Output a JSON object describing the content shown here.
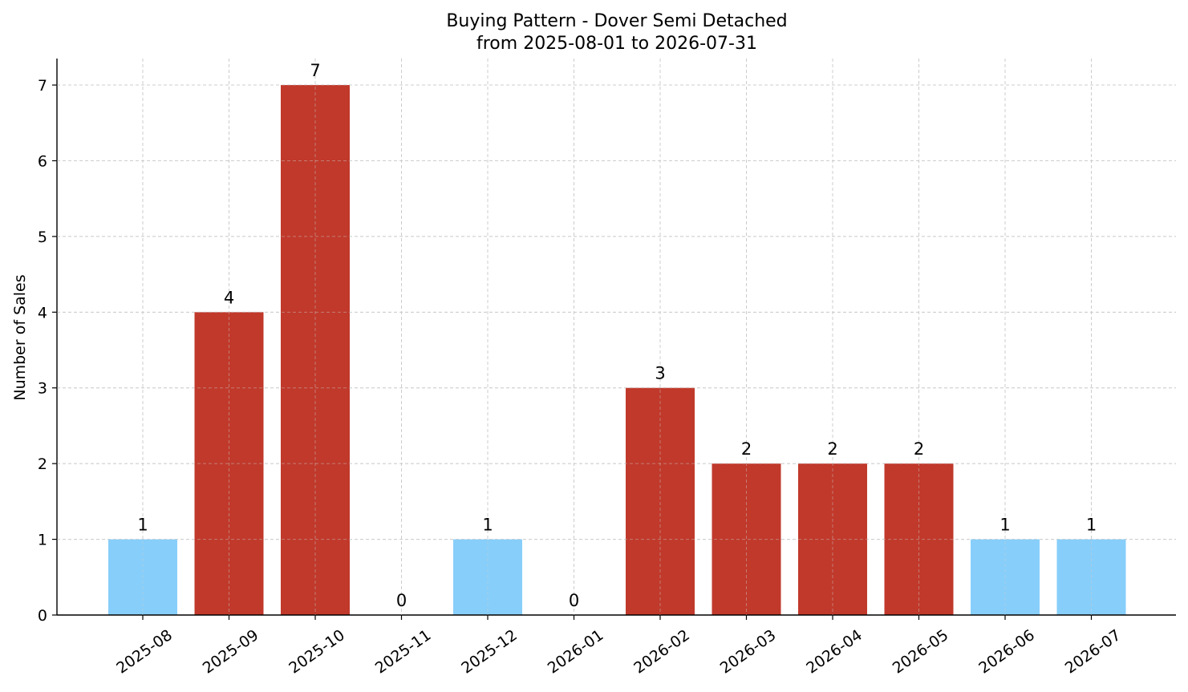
{
  "chart_data": {
    "type": "bar",
    "title": "Buying Pattern - Dover Semi Detached",
    "subtitle": "from 2025-08-01 to 2026-07-31",
    "xlabel": "",
    "ylabel": "Number of Sales",
    "categories": [
      "2025-08",
      "2025-09",
      "2025-10",
      "2025-11",
      "2025-12",
      "2026-01",
      "2026-02",
      "2026-03",
      "2026-04",
      "2026-05",
      "2026-06",
      "2026-07"
    ],
    "values": [
      1,
      4,
      7,
      0,
      1,
      0,
      3,
      2,
      2,
      2,
      1,
      1
    ],
    "bar_colors": [
      "#87CEFA",
      "#C0392B",
      "#C0392B",
      "#C0392B",
      "#87CEFA",
      "#C0392B",
      "#C0392B",
      "#C0392B",
      "#C0392B",
      "#C0392B",
      "#87CEFA",
      "#87CEFA"
    ],
    "ylim": [
      0,
      7.35
    ],
    "yticks": [
      0,
      1,
      2,
      3,
      4,
      5,
      6,
      7
    ],
    "grid": true,
    "grid_color": "#cccccc",
    "axis_color": "#000000"
  }
}
